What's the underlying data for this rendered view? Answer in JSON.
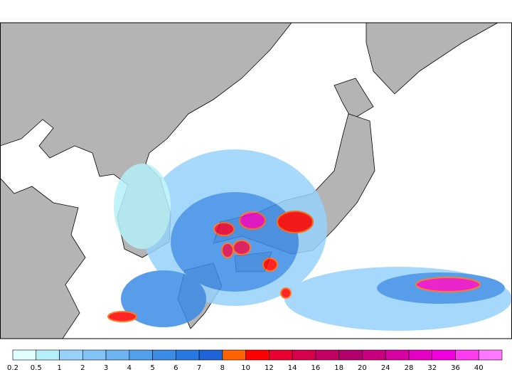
{
  "legend": {
    "levels": [
      0.2,
      0.5,
      1,
      2,
      3,
      4,
      5,
      6,
      7,
      8,
      10,
      12,
      14,
      16,
      18,
      20,
      24,
      28,
      32,
      36,
      40
    ],
    "colors": [
      "#e0ffff",
      "#b4f0f8",
      "#96d2fa",
      "#82c3f5",
      "#6eb4f0",
      "#50a0eb",
      "#3c8ce6",
      "#2878e1",
      "#1e64d7",
      "#ff6400",
      "#ff0000",
      "#eb0032",
      "#d7004b",
      "#c30064",
      "#b4006e",
      "#c8007d",
      "#d700a0",
      "#e600c3",
      "#f000dc",
      "#ff3cf0",
      "#ff78ff"
    ]
  }
}
